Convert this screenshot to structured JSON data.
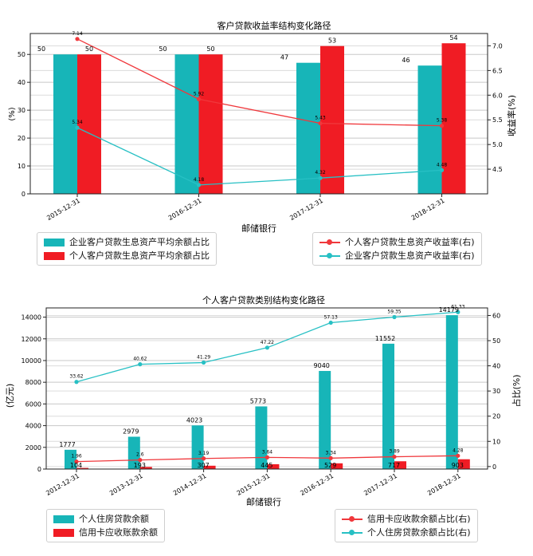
{
  "colors": {
    "teal": "#17b5b8",
    "red": "#f01c24",
    "line_red": "#f0383c",
    "line_teal": "#27c0c4"
  },
  "chart_data": [
    {
      "type": "bar",
      "title": "客户贷款收益率结构变化路径",
      "xlabel": "邮储银行",
      "ylabel": "(%)",
      "y2label": "收益率(%)",
      "categories": [
        "2015-12-31",
        "2016-12-31",
        "2017-12-31",
        "2018-12-31"
      ],
      "ylim": [
        0,
        57.5
      ],
      "y2lim": [
        4.0,
        7.25
      ],
      "bar_series": [
        {
          "name": "企业客户贷款生息资产平均余额占比",
          "color": "#17b5b8",
          "values": [
            50,
            50,
            47,
            46
          ]
        },
        {
          "name": "个人客户贷款生息资产平均余额占比",
          "color": "#f01c24",
          "values": [
            50,
            50,
            53,
            54
          ]
        }
      ],
      "line_series": [
        {
          "name": "个人客户贷款生息资产收益率(右)",
          "color": "#f0383c",
          "values": [
            7.14,
            5.92,
            5.43,
            5.38
          ]
        },
        {
          "name": "企业客户贷款生息资产收益率(右)",
          "color": "#27c0c4",
          "values": [
            5.34,
            4.18,
            4.32,
            4.48
          ]
        }
      ],
      "bar_labels": {
        "teal": [
          "50",
          "50",
          "47",
          "46"
        ],
        "red": [
          "50",
          "50",
          "53",
          "54"
        ]
      },
      "line_labels": {
        "red": [
          "7.14",
          "5.92",
          "5.43",
          "5.38"
        ],
        "teal": [
          "5.34",
          "4.18",
          "4.32",
          "4.48"
        ]
      },
      "yticks": [
        0,
        10,
        20,
        30,
        40,
        50
      ],
      "y2ticks": [
        4.5,
        5.0,
        5.5,
        6.0,
        6.5,
        7.0
      ],
      "ytick_labels": [
        "0",
        "10",
        "20",
        "30",
        "40",
        "50"
      ],
      "y2tick_labels": [
        "4.5",
        "5.0",
        "5.5",
        "6.0",
        "6.5",
        "7.0"
      ],
      "grid": true,
      "legend_bars_placement": "below-left",
      "legend_lines_placement": "below-right"
    },
    {
      "type": "bar",
      "title": "个人客户贷款类别结构变化路径",
      "xlabel": "邮储银行",
      "ylabel": "(亿元)",
      "y2label": "占比(%)",
      "categories": [
        "2012-12-31",
        "2013-12-31",
        "2014-12-31",
        "2015-12-31",
        "2016-12-31",
        "2017-12-31",
        "2018-12-31"
      ],
      "ylim": [
        0,
        14850
      ],
      "y2lim": [
        -1,
        63
      ],
      "bar_series": [
        {
          "name": "个人住房贷款余额",
          "color": "#17b5b8",
          "values": [
            1777,
            2979,
            4023,
            5773,
            9040,
            11552,
            14179
          ]
        },
        {
          "name": "信用卡应收账款余额",
          "color": "#f01c24",
          "values": [
            104,
            193,
            307,
            445,
            529,
            717,
            903
          ]
        }
      ],
      "line_series": [
        {
          "name": "信用卡应收款余额占比(右)",
          "color": "#f0383c",
          "values": [
            1.96,
            2.6,
            3.19,
            3.64,
            3.34,
            3.89,
            4.28
          ]
        },
        {
          "name": "个人住房贷款余额占比(右)",
          "color": "#27c0c4",
          "values": [
            33.62,
            40.62,
            41.29,
            47.22,
            57.13,
            59.35,
            61.33
          ]
        }
      ],
      "bar_labels": {
        "teal": [
          "1777",
          "2979",
          "4023",
          "5773",
          "9040",
          "11552",
          "14179"
        ],
        "red": [
          "104",
          "193",
          "307",
          "445",
          "529",
          "717",
          "903"
        ]
      },
      "line_labels": {
        "red": [
          "1.96",
          "2.6",
          "3.19",
          "3.64",
          "3.34",
          "3.89",
          "4.28"
        ],
        "teal": [
          "33.62",
          "40.62",
          "41.29",
          "47.22",
          "57.13",
          "59.35",
          "61.33"
        ]
      },
      "yticks": [
        0,
        2000,
        4000,
        6000,
        8000,
        10000,
        12000,
        14000
      ],
      "y2ticks": [
        0,
        10,
        20,
        30,
        40,
        50,
        60
      ],
      "ytick_labels": [
        "0",
        "2000",
        "4000",
        "6000",
        "8000",
        "10000",
        "12000",
        "14000"
      ],
      "y2tick_labels": [
        "0",
        "10",
        "20",
        "30",
        "40",
        "50",
        "60"
      ],
      "grid": true,
      "legend_bars_placement": "below-left",
      "legend_lines_placement": "below-right"
    }
  ]
}
